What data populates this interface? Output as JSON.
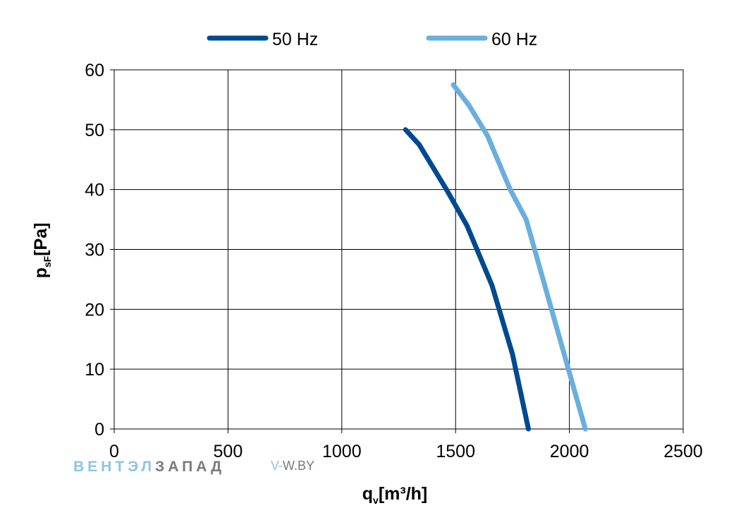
{
  "chart_data": {
    "type": "line",
    "xlabel": {
      "main": "q",
      "sub": "v",
      "rest": "[m³/h]"
    },
    "ylabel": {
      "main": "p",
      "sub": "sF",
      "rest": "[Pa]"
    },
    "xlim": [
      0,
      2500
    ],
    "ylim": [
      0,
      60
    ],
    "xticks": [
      "0",
      "500",
      "1000",
      "1500",
      "2000",
      "2500"
    ],
    "yticks": [
      "0",
      "10",
      "20",
      "30",
      "40",
      "50",
      "60"
    ],
    "grid": true,
    "legend_position": "top",
    "series": [
      {
        "name": "50 Hz",
        "color": "#004a8f",
        "points": [
          [
            1280,
            50
          ],
          [
            1340,
            47.5
          ],
          [
            1460,
            40
          ],
          [
            1550,
            34
          ],
          [
            1660,
            24
          ],
          [
            1750,
            12.5
          ],
          [
            1820,
            0
          ]
        ]
      },
      {
        "name": "60 Hz",
        "color": "#6aaede",
        "points": [
          [
            1490,
            57.5
          ],
          [
            1560,
            54
          ],
          [
            1640,
            49
          ],
          [
            1740,
            40
          ],
          [
            1810,
            35
          ],
          [
            1940,
            17.5
          ],
          [
            2070,
            0
          ]
        ]
      }
    ]
  },
  "watermark": {
    "brand_part1": "ВЕНТЭЛ",
    "brand_part2": "ЗАПАД",
    "site_part1": "V-",
    "site_part2": "W.BY",
    "color_light": "#8cc4e6",
    "color_dark": "#7a7a7a"
  }
}
